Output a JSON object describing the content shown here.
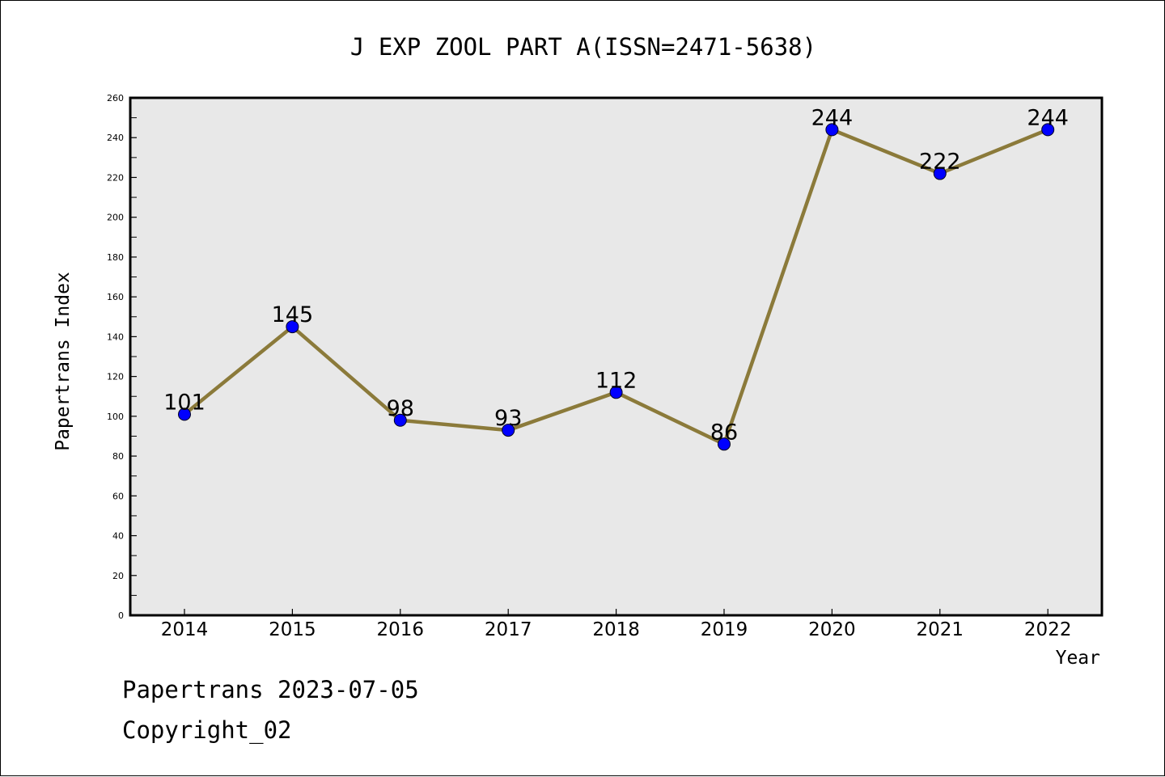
{
  "chart_data": {
    "type": "line",
    "title": "J EXP ZOOL PART A(ISSN=2471-5638)",
    "xlabel": "Year",
    "ylabel": "Papertrans Index",
    "categories": [
      "2014",
      "2015",
      "2016",
      "2017",
      "2018",
      "2019",
      "2020",
      "2021",
      "2022"
    ],
    "series": [
      {
        "values": [
          101,
          145,
          98,
          93,
          112,
          86,
          244,
          222,
          244
        ]
      }
    ],
    "ylim": [
      0,
      260
    ],
    "yticks": [
      0,
      20,
      40,
      60,
      80,
      100,
      120,
      140,
      160,
      180,
      200,
      220,
      240,
      260
    ],
    "grid": false,
    "line_color": "#8b7a3a",
    "marker_color": "#0000ff",
    "plot_background": "#e8e8e8"
  },
  "footer": {
    "line1": "Papertrans 2023-07-05",
    "line2": "Copyright_02"
  }
}
